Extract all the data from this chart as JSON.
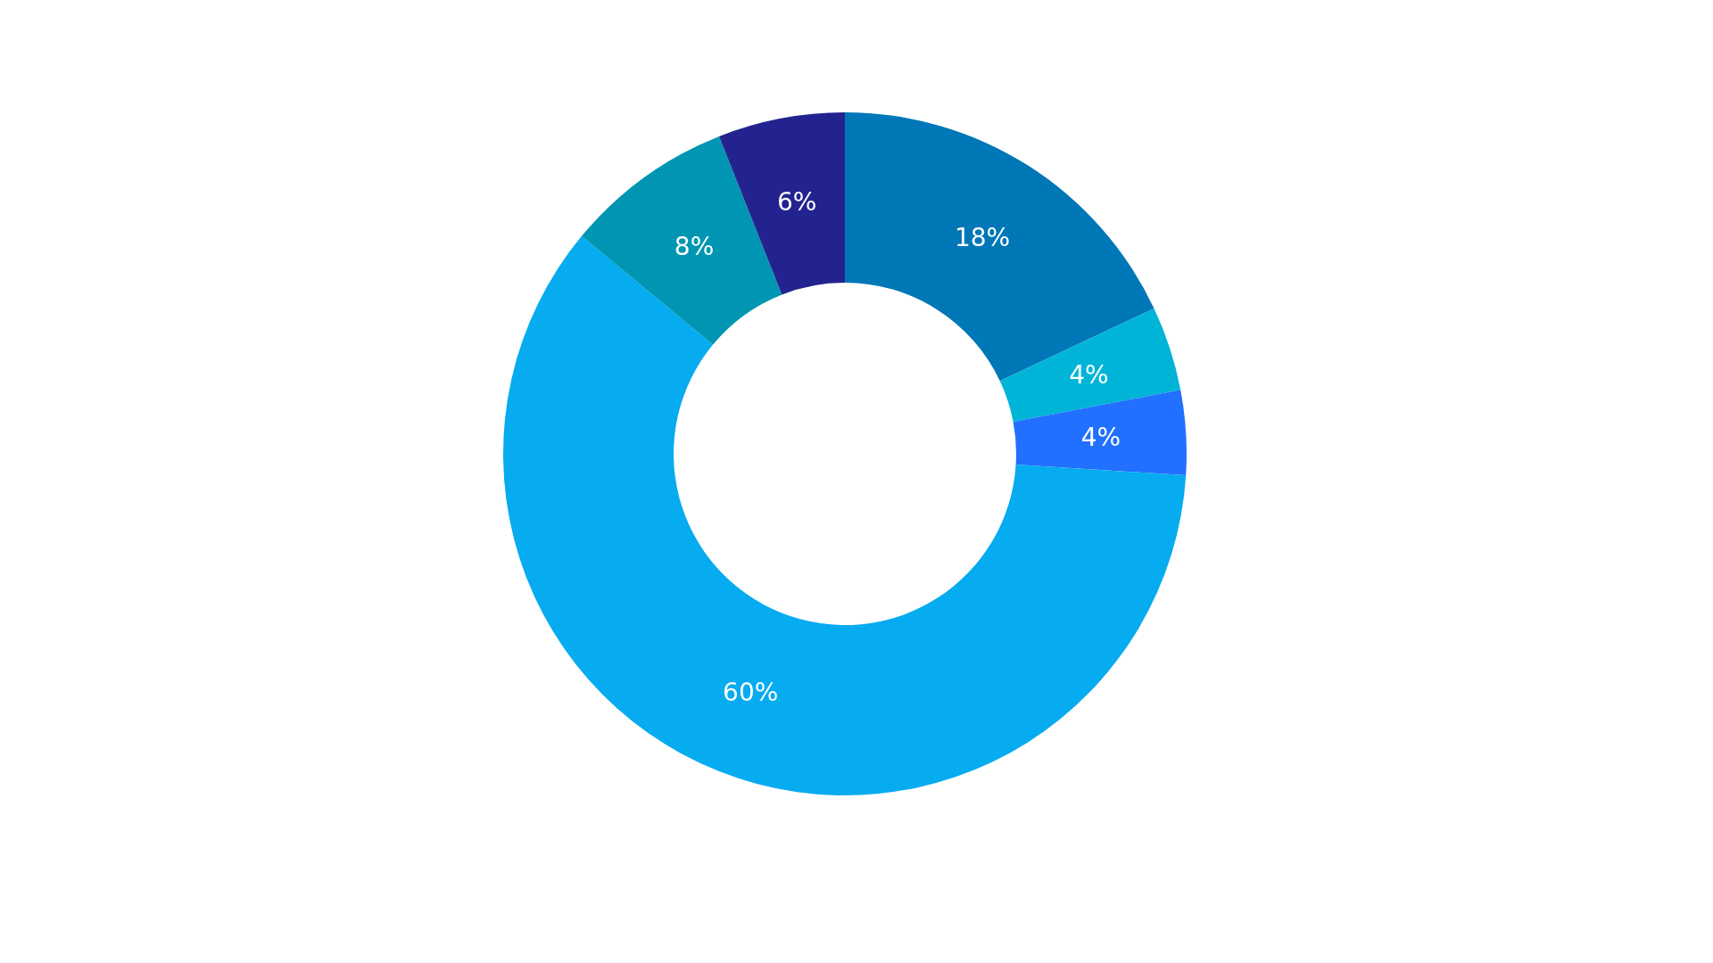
{
  "chart_data": {
    "type": "donut",
    "categories": [
      null,
      null,
      null,
      null,
      null,
      null
    ],
    "values": [
      18,
      4,
      4,
      60,
      8,
      6
    ],
    "colors": [
      "#0077b6",
      "#00b4d8",
      "#2170ff",
      "#06abf0",
      "#0096b3",
      "#23238f"
    ],
    "value_labels": [
      "18%",
      "4%",
      "4%",
      "60%",
      "8%",
      "6%"
    ]
  }
}
